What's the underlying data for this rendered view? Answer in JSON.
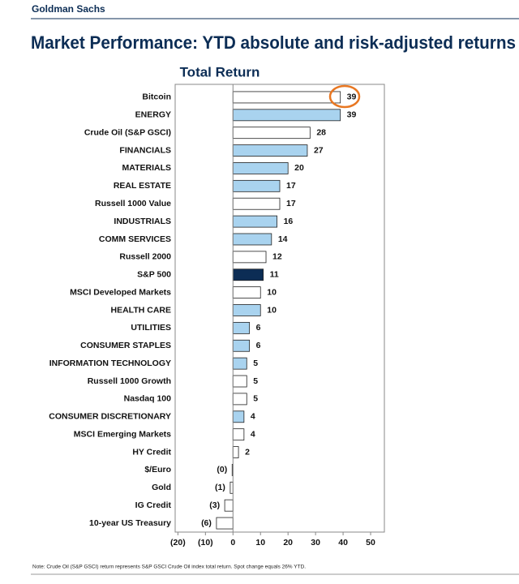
{
  "header": {
    "brand": "Goldman Sachs"
  },
  "chart_data": {
    "type": "bar",
    "orientation": "horizontal",
    "title": "Market Performance: YTD absolute and risk-adjusted returns",
    "subtitle": "Total Return",
    "categories": [
      "Bitcoin",
      "ENERGY",
      "Crude Oil (S&P GSCI)",
      "FINANCIALS",
      "MATERIALS",
      "REAL ESTATE",
      "Russell 1000 Value",
      "INDUSTRIALS",
      "COMM SERVICES",
      "Russell 2000",
      "S&P 500",
      "MSCI Developed Markets",
      "HEALTH CARE",
      "UTILITIES",
      "CONSUMER STAPLES",
      "INFORMATION TECHNOLOGY",
      "Russell 1000 Growth",
      "Nasdaq 100",
      "CONSUMER DISCRETIONARY",
      "MSCI Emerging Markets",
      "HY Credit",
      "$/Euro",
      "Gold",
      "IG Credit",
      "10-year US Treasury"
    ],
    "values": [
      39,
      39,
      28,
      27,
      20,
      17,
      17,
      16,
      14,
      12,
      11,
      10,
      10,
      6,
      6,
      5,
      5,
      5,
      4,
      4,
      2,
      -0.3,
      -1,
      -3,
      -6
    ],
    "value_labels": [
      "39",
      "39",
      "28",
      "27",
      "20",
      "17",
      "17",
      "16",
      "14",
      "12",
      "11",
      "10",
      "10",
      "6",
      "6",
      "5",
      "5",
      "5",
      "4",
      "4",
      "2",
      "(0)",
      "(1)",
      "(3)",
      "(6)"
    ],
    "colors": [
      "#ffffff",
      "#a9d3ef",
      "#ffffff",
      "#a9d3ef",
      "#a9d3ef",
      "#a9d3ef",
      "#ffffff",
      "#a9d3ef",
      "#a9d3ef",
      "#ffffff",
      "#0c2d55",
      "#ffffff",
      "#a9d3ef",
      "#a9d3ef",
      "#a9d3ef",
      "#a9d3ef",
      "#ffffff",
      "#ffffff",
      "#a9d3ef",
      "#ffffff",
      "#ffffff",
      "#ffffff",
      "#ffffff",
      "#ffffff",
      "#ffffff"
    ],
    "xlim": [
      -21,
      55
    ],
    "xticks": [
      {
        "value": -20,
        "label": "(20)"
      },
      {
        "value": -10,
        "label": "(10)"
      },
      0,
      10,
      20,
      30,
      40,
      50
    ],
    "note": "Note: Crude Oil (S&P GSCI) return represents S&P GSCI Crude Oil index total return. Spot change equals 26% YTD."
  }
}
